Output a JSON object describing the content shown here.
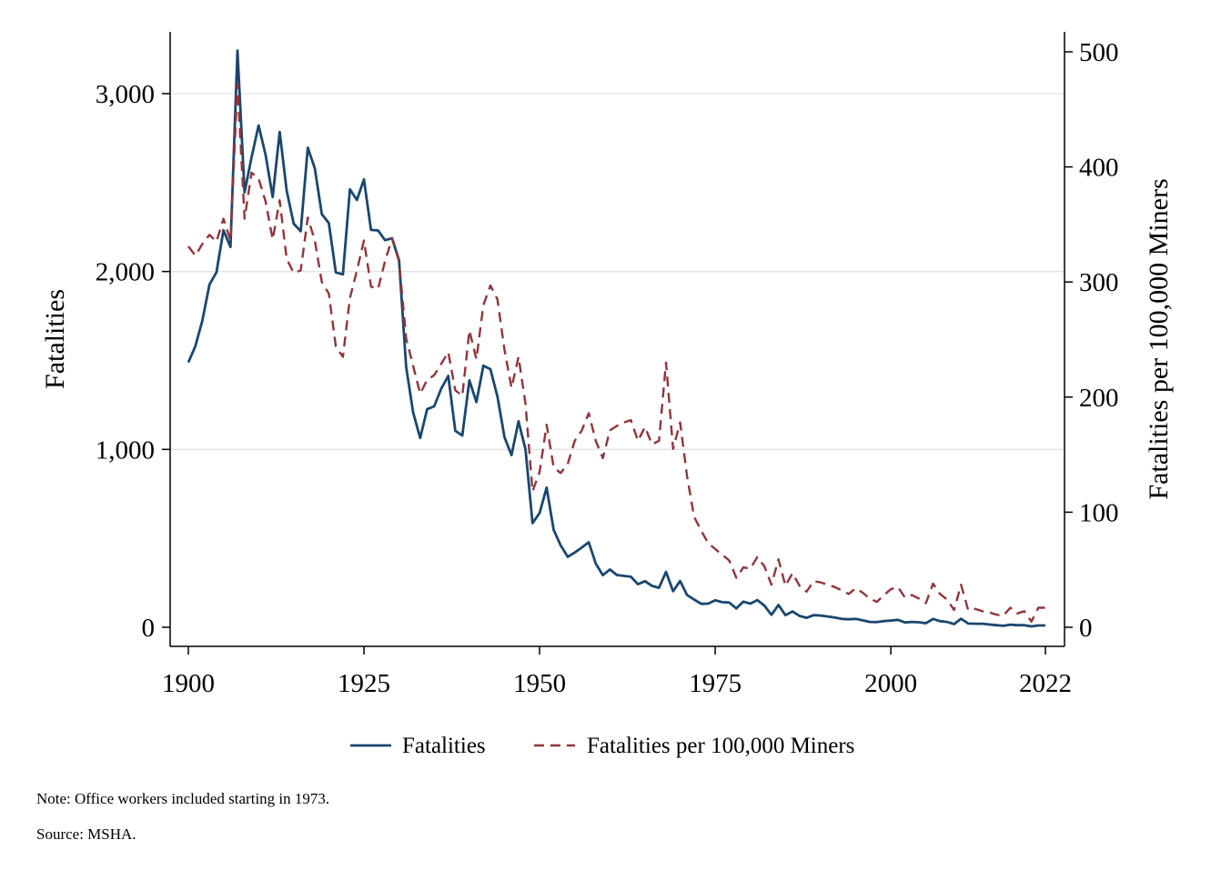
{
  "colors": {
    "fatalities": "#1a476f",
    "rate": "#90353b",
    "grid": "#e3e3e3",
    "axis": "#000000"
  },
  "notes": {
    "note": "Note: Office workers included starting in 1973.",
    "source": "Source: MSHA."
  },
  "chart_data": {
    "type": "line",
    "xlabel": "",
    "ylabel_left": "Fatalities",
    "ylabel_right": "Fatalities per 100,000 Miners",
    "xlim": [
      1900,
      2022
    ],
    "ylim_left": [
      0,
      3000
    ],
    "ylim_right": [
      0,
      500
    ],
    "x_ticks": [
      "1900",
      "1925",
      "1950",
      "1975",
      "2000",
      "2022"
    ],
    "y_left_ticks": [
      "0",
      "1,000",
      "2,000",
      "3,000"
    ],
    "y_right_ticks": [
      "0",
      "100",
      "200",
      "300",
      "400",
      "500"
    ],
    "grid": true,
    "legend_position": "bottom",
    "x": [
      1900,
      1901,
      1902,
      1903,
      1904,
      1905,
      1906,
      1907,
      1908,
      1909,
      1910,
      1911,
      1912,
      1913,
      1914,
      1915,
      1916,
      1917,
      1918,
      1919,
      1920,
      1921,
      1922,
      1923,
      1924,
      1925,
      1926,
      1927,
      1928,
      1929,
      1930,
      1931,
      1932,
      1933,
      1934,
      1935,
      1936,
      1937,
      1938,
      1939,
      1940,
      1941,
      1942,
      1943,
      1944,
      1945,
      1946,
      1947,
      1948,
      1949,
      1950,
      1951,
      1952,
      1953,
      1954,
      1955,
      1956,
      1957,
      1958,
      1959,
      1960,
      1961,
      1962,
      1963,
      1964,
      1965,
      1966,
      1967,
      1968,
      1969,
      1970,
      1971,
      1972,
      1973,
      1974,
      1975,
      1976,
      1977,
      1978,
      1979,
      1980,
      1981,
      1982,
      1983,
      1984,
      1985,
      1986,
      1987,
      1988,
      1989,
      1990,
      1991,
      1992,
      1993,
      1994,
      1995,
      1996,
      1997,
      1998,
      1999,
      2000,
      2001,
      2002,
      2003,
      2004,
      2005,
      2006,
      2007,
      2008,
      2009,
      2010,
      2011,
      2012,
      2013,
      2014,
      2015,
      2016,
      2017,
      2018,
      2019,
      2020,
      2021,
      2022
    ],
    "series": [
      {
        "name": "Fatalities",
        "axis": "left",
        "style": "solid",
        "values": [
          1489,
          1580,
          1724,
          1926,
          1995,
          2232,
          2138,
          3242,
          2445,
          2642,
          2821,
          2656,
          2419,
          2785,
          2454,
          2269,
          2226,
          2696,
          2580,
          2323,
          2272,
          1995,
          1984,
          2462,
          2402,
          2518,
          2234,
          2231,
          2176,
          2187,
          2063,
          1463,
          1207,
          1064,
          1226,
          1242,
          1342,
          1413,
          1105,
          1078,
          1388,
          1266,
          1471,
          1451,
          1298,
          1068,
          968,
          1158,
          999,
          585,
          643,
          785,
          548,
          461,
          396,
          420,
          448,
          478,
          358,
          293,
          325,
          294,
          289,
          284,
          242,
          259,
          233,
          222,
          311,
          203,
          260,
          181,
          156,
          132,
          133,
          152,
          141,
          139,
          106,
          144,
          133,
          153,
          122,
          70,
          125,
          68,
          89,
          64,
          53,
          68,
          66,
          61,
          55,
          47,
          45,
          47,
          39,
          30,
          29,
          35,
          38,
          42,
          27,
          30,
          28,
          23,
          47,
          34,
          30,
          18,
          48,
          21,
          20,
          20,
          16,
          12,
          8,
          15,
          12,
          12,
          5,
          10,
          10
        ]
      },
      {
        "name": "Fatalities per 100,000 Miners",
        "axis": "right",
        "style": "dashed",
        "values": [
          331,
          323,
          333,
          341,
          335,
          355,
          336,
          472,
          355,
          395,
          390,
          370,
          337,
          371,
          320,
          308,
          310,
          356,
          336,
          300,
          290,
          244,
          235,
          286,
          310,
          336,
          296,
          294,
          318,
          338,
          318,
          251,
          227,
          203,
          215,
          219,
          229,
          239,
          206,
          201,
          258,
          233,
          280,
          297,
          285,
          241,
          208,
          235,
          194,
          118,
          135,
          176,
          139,
          134,
          142,
          162,
          171,
          186,
          162,
          147,
          171,
          175,
          178,
          180,
          162,
          174,
          159,
          162,
          230,
          155,
          178,
          131,
          96,
          84,
          73,
          68,
          63,
          58,
          43,
          52,
          51,
          61,
          53,
          37,
          59,
          36,
          47,
          36,
          31,
          40,
          39,
          37,
          35,
          32,
          29,
          34,
          30,
          25,
          22,
          28,
          33,
          35,
          26,
          28,
          25,
          21,
          38,
          29,
          24,
          15,
          37,
          15,
          16,
          14,
          13,
          11,
          10,
          17,
          12,
          14,
          5,
          17,
          17
        ]
      }
    ]
  }
}
